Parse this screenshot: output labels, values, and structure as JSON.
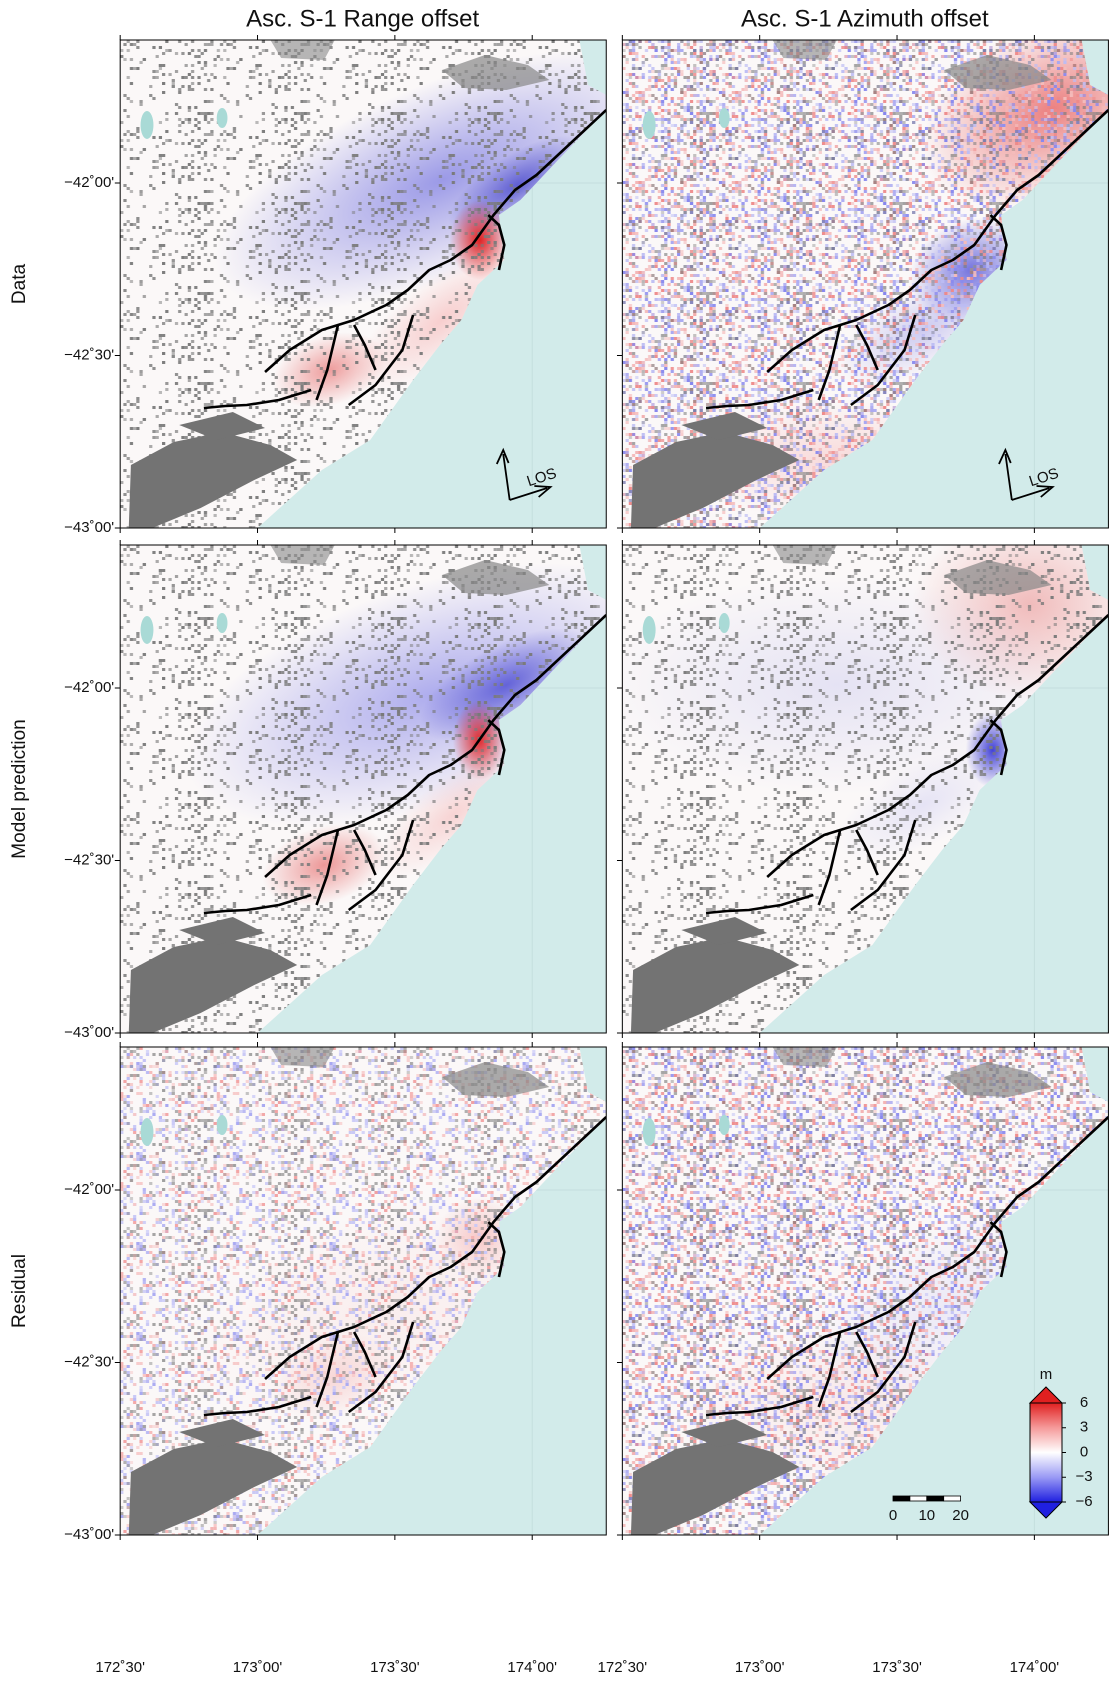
{
  "columns": [
    "Asc. S-1 Range offset",
    "Asc. S-1 Azimuth offset"
  ],
  "rows": [
    "Data",
    "Model prediction",
    "Residual"
  ],
  "lat_ticks": [
    {
      "value": -42,
      "label": "−42˚00'"
    },
    {
      "value": -42.5,
      "label": "−42˚30'"
    },
    {
      "value": -43,
      "label": "−43˚00'"
    }
  ],
  "lon_ticks": [
    {
      "value": 172.5,
      "label": "172˚30'"
    },
    {
      "value": 173,
      "label": "173˚00'"
    },
    {
      "value": 173.5,
      "label": "173˚30'"
    },
    {
      "value": 174,
      "label": "174˚00'"
    }
  ],
  "los_label": "LOS",
  "colorbar": {
    "unit": "m",
    "ticks": [
      6,
      3,
      0,
      {
        "value": -3,
        "label": "−3"
      },
      {
        "value": -6,
        "label": "−6"
      }
    ]
  },
  "scale_bar": {
    "ticks": [
      0,
      10,
      20
    ]
  }
}
